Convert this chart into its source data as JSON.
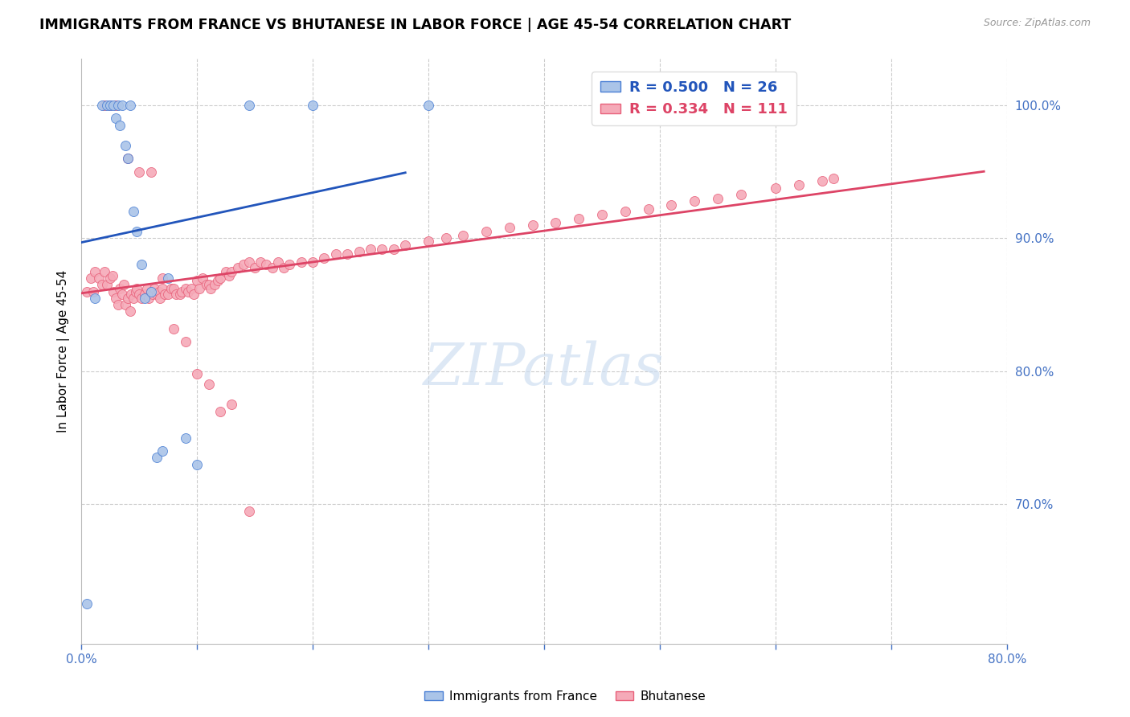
{
  "title": "IMMIGRANTS FROM FRANCE VS BHUTANESE IN LABOR FORCE | AGE 45-54 CORRELATION CHART",
  "source": "Source: ZipAtlas.com",
  "ylabel": "In Labor Force | Age 45-54",
  "xlim": [
    0.0,
    0.8
  ],
  "ylim": [
    0.595,
    1.035
  ],
  "ytick_right_labels": [
    "100.0%",
    "90.0%",
    "80.0%",
    "70.0%"
  ],
  "ytick_right_values": [
    1.0,
    0.9,
    0.8,
    0.7
  ],
  "france_R": 0.5,
  "france_N": 26,
  "bhutan_R": 0.334,
  "bhutan_N": 111,
  "france_color": "#aac4e8",
  "bhutan_color": "#f5aab8",
  "france_edge_color": "#4a7fd4",
  "bhutan_edge_color": "#e8607a",
  "france_line_color": "#2255bb",
  "bhutan_line_color": "#dd4466",
  "legend_label_france": "Immigrants from France",
  "legend_label_bhutan": "Bhutanese",
  "france_x": [
    0.005,
    0.012,
    0.018,
    0.022,
    0.025,
    0.028,
    0.03,
    0.032,
    0.033,
    0.035,
    0.038,
    0.04,
    0.042,
    0.045,
    0.048,
    0.052,
    0.055,
    0.06,
    0.065,
    0.07,
    0.075,
    0.09,
    0.1,
    0.145,
    0.2,
    0.3
  ],
  "france_y": [
    0.625,
    0.855,
    1.0,
    1.0,
    1.0,
    1.0,
    0.99,
    1.0,
    0.985,
    1.0,
    0.97,
    0.96,
    1.0,
    0.92,
    0.905,
    0.88,
    0.855,
    0.86,
    0.735,
    0.74,
    0.87,
    0.75,
    0.73,
    1.0,
    1.0,
    1.0
  ],
  "bhutan_x": [
    0.005,
    0.008,
    0.01,
    0.012,
    0.015,
    0.018,
    0.02,
    0.022,
    0.025,
    0.027,
    0.028,
    0.03,
    0.032,
    0.033,
    0.035,
    0.037,
    0.038,
    0.04,
    0.042,
    0.043,
    0.045,
    0.047,
    0.048,
    0.05,
    0.052,
    0.055,
    0.057,
    0.058,
    0.06,
    0.062,
    0.063,
    0.065,
    0.067,
    0.068,
    0.07,
    0.072,
    0.075,
    0.078,
    0.08,
    0.082,
    0.085,
    0.087,
    0.09,
    0.092,
    0.095,
    0.097,
    0.1,
    0.102,
    0.105,
    0.108,
    0.11,
    0.112,
    0.115,
    0.118,
    0.12,
    0.125,
    0.128,
    0.13,
    0.135,
    0.14,
    0.145,
    0.15,
    0.155,
    0.16,
    0.165,
    0.17,
    0.175,
    0.18,
    0.19,
    0.2,
    0.21,
    0.22,
    0.23,
    0.24,
    0.25,
    0.26,
    0.27,
    0.28,
    0.3,
    0.315,
    0.33,
    0.35,
    0.37,
    0.39,
    0.41,
    0.43,
    0.45,
    0.47,
    0.49,
    0.51,
    0.53,
    0.55,
    0.57,
    0.6,
    0.62,
    0.64,
    0.65,
    0.02,
    0.025,
    0.03,
    0.04,
    0.05,
    0.06,
    0.07,
    0.08,
    0.09,
    0.1,
    0.11,
    0.12,
    0.13,
    0.145
  ],
  "bhutan_y": [
    0.86,
    0.87,
    0.86,
    0.875,
    0.87,
    0.865,
    0.875,
    0.865,
    0.87,
    0.872,
    0.86,
    0.855,
    0.85,
    0.862,
    0.858,
    0.865,
    0.85,
    0.855,
    0.845,
    0.858,
    0.855,
    0.86,
    0.862,
    0.858,
    0.855,
    0.858,
    0.862,
    0.855,
    0.86,
    0.858,
    0.862,
    0.858,
    0.86,
    0.855,
    0.862,
    0.858,
    0.858,
    0.862,
    0.862,
    0.858,
    0.858,
    0.86,
    0.862,
    0.86,
    0.862,
    0.858,
    0.868,
    0.862,
    0.87,
    0.865,
    0.865,
    0.862,
    0.865,
    0.868,
    0.87,
    0.875,
    0.872,
    0.875,
    0.878,
    0.88,
    0.882,
    0.878,
    0.882,
    0.88,
    0.878,
    0.882,
    0.878,
    0.88,
    0.882,
    0.882,
    0.885,
    0.888,
    0.888,
    0.89,
    0.892,
    0.892,
    0.892,
    0.895,
    0.898,
    0.9,
    0.902,
    0.905,
    0.908,
    0.91,
    0.912,
    0.915,
    0.918,
    0.92,
    0.922,
    0.925,
    0.928,
    0.93,
    0.933,
    0.938,
    0.94,
    0.943,
    0.945,
    1.0,
    1.0,
    1.0,
    0.96,
    0.95,
    0.95,
    0.87,
    0.832,
    0.822,
    0.798,
    0.79,
    0.77,
    0.775,
    0.695
  ]
}
